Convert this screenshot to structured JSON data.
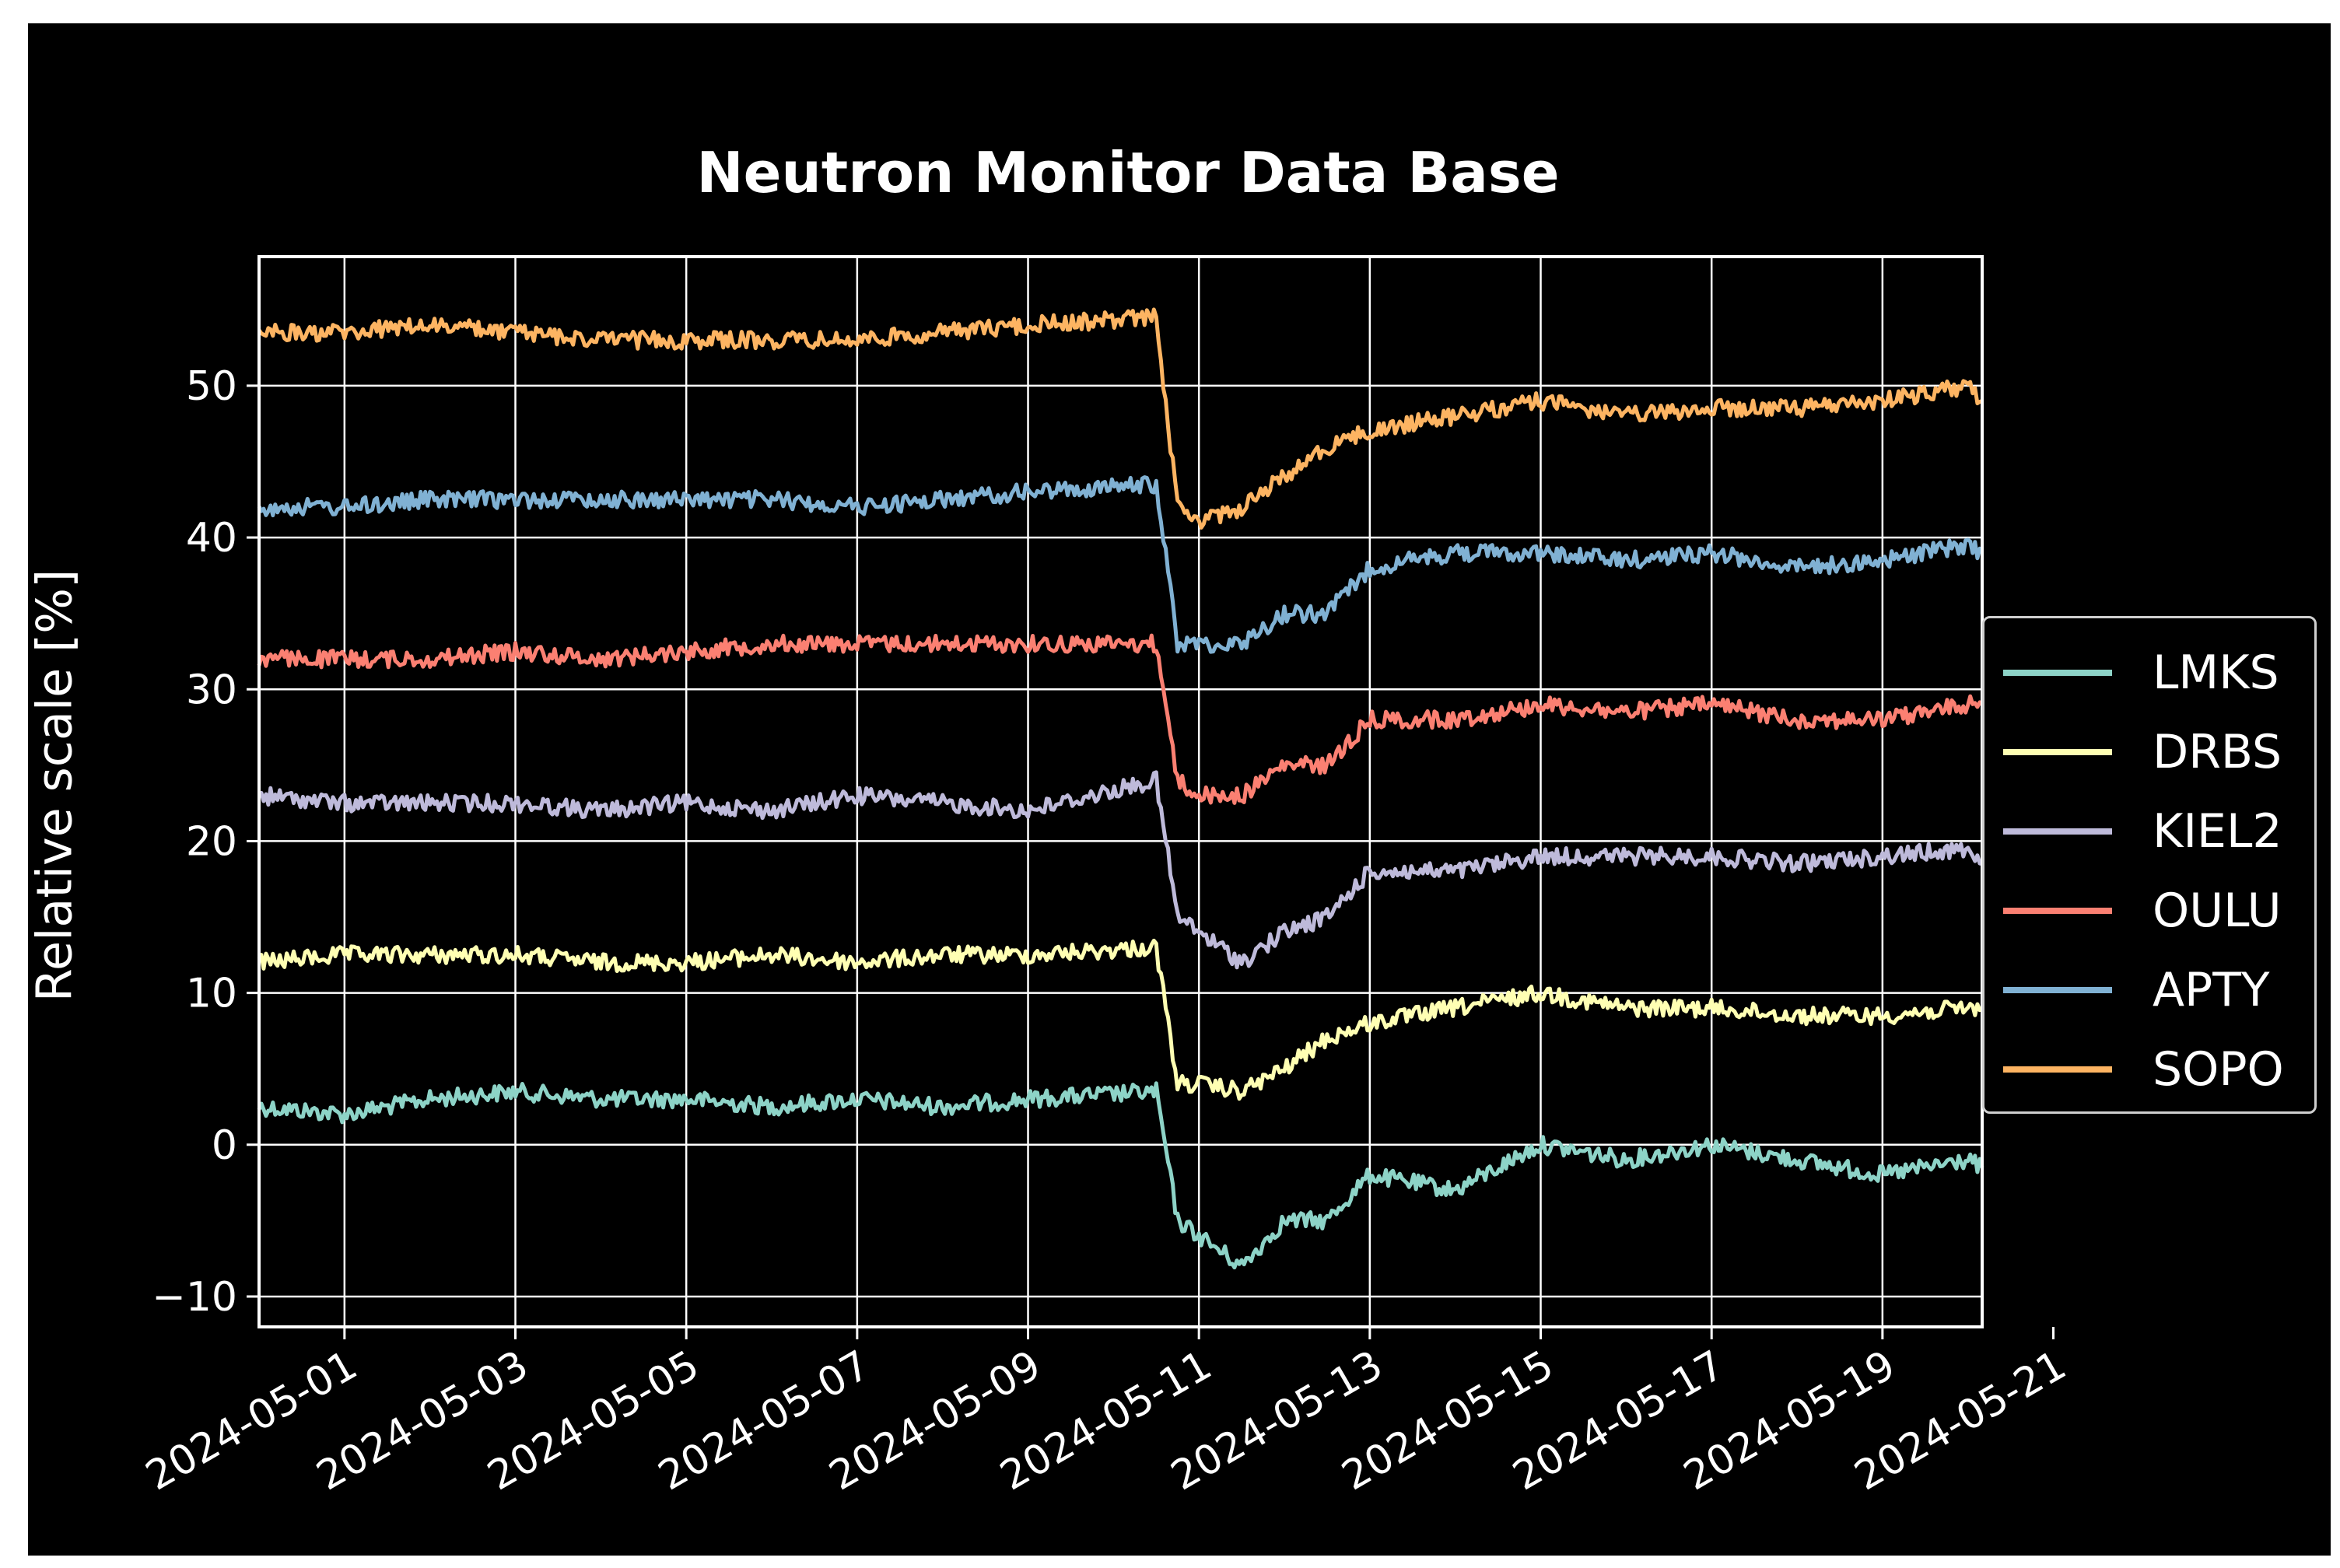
{
  "chart_data": {
    "type": "line",
    "title": "Neutron Monitor Data Base",
    "ylabel": "Relative scale [%]",
    "xlabel": "",
    "ylim": [
      -12,
      58.5
    ],
    "xlim": [
      "2024-04-30T00:00",
      "2024-05-20T04:00"
    ],
    "y_ticks": [
      -10,
      0,
      10,
      20,
      30,
      40,
      50
    ],
    "x_ticks": [
      "2024-05-01",
      "2024-05-03",
      "2024-05-05",
      "2024-05-07",
      "2024-05-09",
      "2024-05-11",
      "2024-05-13",
      "2024-05-15",
      "2024-05-17",
      "2024-05-19",
      "2024-05-21"
    ],
    "grid": true,
    "legend_position": "right",
    "background": "#000000",
    "series": [
      {
        "name": "LMKS",
        "color": "#8dd3c7",
        "x": [
          "2024-04-30T00:00",
          "2024-05-01T00:00",
          "2024-05-02T00:00",
          "2024-05-03T00:00",
          "2024-05-04T00:00",
          "2024-05-05T00:00",
          "2024-05-06T00:00",
          "2024-05-07T00:00",
          "2024-05-08T00:00",
          "2024-05-09T00:00",
          "2024-05-10T12:00",
          "2024-05-10T18:00",
          "2024-05-11T00:00",
          "2024-05-11T12:00",
          "2024-05-12T00:00",
          "2024-05-12T12:00",
          "2024-05-13T00:00",
          "2024-05-14T00:00",
          "2024-05-15T00:00",
          "2024-05-16T00:00",
          "2024-05-17T00:00",
          "2024-05-18T00:00",
          "2024-05-19T00:00",
          "2024-05-20T00:00",
          "2024-05-20T04:00"
        ],
        "y": [
          2.5,
          2,
          3,
          3.5,
          3,
          3,
          2.5,
          3,
          2.5,
          3,
          3.5,
          -5,
          -6,
          -8,
          -5,
          -5,
          -2,
          -3,
          0,
          -1,
          0,
          -1,
          -2,
          -1,
          -1.5
        ]
      },
      {
        "name": "DRBS",
        "color": "#ffffb3",
        "x": [
          "2024-04-30T00:00",
          "2024-05-01T00:00",
          "2024-05-02T00:00",
          "2024-05-03T00:00",
          "2024-05-04T00:00",
          "2024-05-05T00:00",
          "2024-05-06T00:00",
          "2024-05-07T00:00",
          "2024-05-08T00:00",
          "2024-05-09T00:00",
          "2024-05-10T12:00",
          "2024-05-10T18:00",
          "2024-05-11T00:00",
          "2024-05-11T12:00",
          "2024-05-12T00:00",
          "2024-05-12T12:00",
          "2024-05-13T00:00",
          "2024-05-14T00:00",
          "2024-05-15T00:00",
          "2024-05-16T00:00",
          "2024-05-17T00:00",
          "2024-05-18T00:00",
          "2024-05-19T00:00",
          "2024-05-20T00:00",
          "2024-05-20T04:00"
        ],
        "y": [
          12,
          12.5,
          12.5,
          12.5,
          12,
          12,
          12.5,
          12,
          12.5,
          12.5,
          13,
          4,
          4,
          3.5,
          5,
          7,
          8,
          9,
          10,
          9,
          9,
          8.5,
          8.5,
          9,
          9
        ]
      },
      {
        "name": "KIEL2",
        "color": "#bebada",
        "x": [
          "2024-04-30T00:00",
          "2024-05-01T00:00",
          "2024-05-02T00:00",
          "2024-05-03T00:00",
          "2024-05-04T00:00",
          "2024-05-05T00:00",
          "2024-05-06T00:00",
          "2024-05-07T00:00",
          "2024-05-08T00:00",
          "2024-05-09T00:00",
          "2024-05-10T12:00",
          "2024-05-10T18:00",
          "2024-05-11T00:00",
          "2024-05-11T12:00",
          "2024-05-12T00:00",
          "2024-05-12T12:00",
          "2024-05-13T00:00",
          "2024-05-14T00:00",
          "2024-05-15T00:00",
          "2024-05-16T00:00",
          "2024-05-17T00:00",
          "2024-05-18T00:00",
          "2024-05-19T00:00",
          "2024-05-20T00:00",
          "2024-05-20T04:00"
        ],
        "y": [
          23,
          22.5,
          22.5,
          22.5,
          22,
          22.5,
          22,
          23,
          22.5,
          22,
          24,
          15,
          14,
          12,
          14,
          15,
          18,
          18,
          19,
          19,
          19,
          18.5,
          19,
          19.5,
          18.5
        ]
      },
      {
        "name": "OULU",
        "color": "#fb8072",
        "x": [
          "2024-04-30T00:00",
          "2024-05-01T00:00",
          "2024-05-02T00:00",
          "2024-05-03T00:00",
          "2024-05-04T00:00",
          "2024-05-05T00:00",
          "2024-05-06T00:00",
          "2024-05-07T00:00",
          "2024-05-08T00:00",
          "2024-05-09T00:00",
          "2024-05-10T12:00",
          "2024-05-10T18:00",
          "2024-05-11T00:00",
          "2024-05-11T12:00",
          "2024-05-12T00:00",
          "2024-05-12T12:00",
          "2024-05-13T00:00",
          "2024-05-14T00:00",
          "2024-05-15T00:00",
          "2024-05-16T00:00",
          "2024-05-17T00:00",
          "2024-05-18T00:00",
          "2024-05-19T00:00",
          "2024-05-20T00:00",
          "2024-05-20T04:00"
        ],
        "y": [
          32,
          32,
          32,
          32.5,
          32,
          32.5,
          33,
          33,
          33,
          33,
          33,
          24,
          23,
          23,
          25,
          25,
          28,
          28,
          29,
          28.5,
          29,
          28,
          28,
          29,
          29
        ]
      },
      {
        "name": "APTY",
        "color": "#80b1d3",
        "x": [
          "2024-04-30T00:00",
          "2024-05-01T00:00",
          "2024-05-02T00:00",
          "2024-05-03T00:00",
          "2024-05-04T00:00",
          "2024-05-05T00:00",
          "2024-05-06T00:00",
          "2024-05-07T00:00",
          "2024-05-08T00:00",
          "2024-05-09T00:00",
          "2024-05-10T12:00",
          "2024-05-10T18:00",
          "2024-05-11T00:00",
          "2024-05-11T12:00",
          "2024-05-12T00:00",
          "2024-05-12T12:00",
          "2024-05-13T00:00",
          "2024-05-14T00:00",
          "2024-05-15T00:00",
          "2024-05-16T00:00",
          "2024-05-17T00:00",
          "2024-05-18T00:00",
          "2024-05-19T00:00",
          "2024-05-20T00:00",
          "2024-05-20T04:00"
        ],
        "y": [
          42,
          42,
          42.5,
          42.5,
          42.5,
          42.5,
          42.5,
          42,
          42.5,
          43,
          43.5,
          33,
          33,
          33,
          35,
          35,
          38,
          39,
          39,
          38.5,
          39,
          38,
          38.5,
          39.5,
          39
        ]
      },
      {
        "name": "SOPO",
        "color": "#fdb462",
        "x": [
          "2024-04-30T00:00",
          "2024-05-01T00:00",
          "2024-05-02T00:00",
          "2024-05-03T00:00",
          "2024-05-04T00:00",
          "2024-05-05T00:00",
          "2024-05-06T00:00",
          "2024-05-07T00:00",
          "2024-05-08T00:00",
          "2024-05-09T00:00",
          "2024-05-10T12:00",
          "2024-05-10T18:00",
          "2024-05-11T00:00",
          "2024-05-11T12:00",
          "2024-05-12T00:00",
          "2024-05-12T12:00",
          "2024-05-13T00:00",
          "2024-05-14T00:00",
          "2024-05-15T00:00",
          "2024-05-16T00:00",
          "2024-05-17T00:00",
          "2024-05-18T00:00",
          "2024-05-19T00:00",
          "2024-05-20T00:00",
          "2024-05-20T04:00"
        ],
        "y": [
          53.5,
          53.5,
          54,
          53.5,
          53,
          53,
          53,
          53,
          53.5,
          54,
          54.5,
          42,
          41,
          42,
          44,
          46,
          47,
          48,
          49,
          48,
          48.5,
          48.5,
          49,
          50,
          49
        ]
      }
    ]
  }
}
